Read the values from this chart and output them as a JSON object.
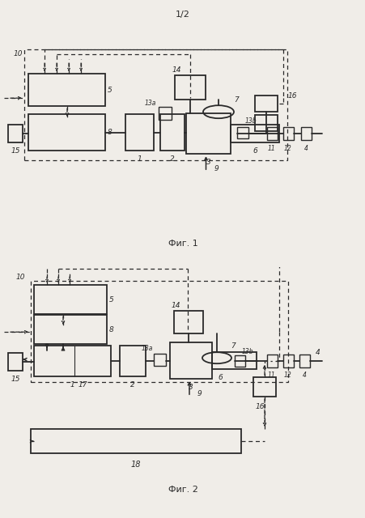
{
  "fig_width": 4.52,
  "fig_height": 6.4,
  "dpi": 100,
  "bg_color": "#f0ede8",
  "lc": "#2a2a2a",
  "lw_main": 1.3,
  "lw_dash": 0.9,
  "lw_thin": 0.8,
  "fs_label": 6.5,
  "fs_caption": 8.0,
  "page_number": "1/2",
  "fig1_caption": "Фиг. 1",
  "fig2_caption": "Фиг. 2"
}
